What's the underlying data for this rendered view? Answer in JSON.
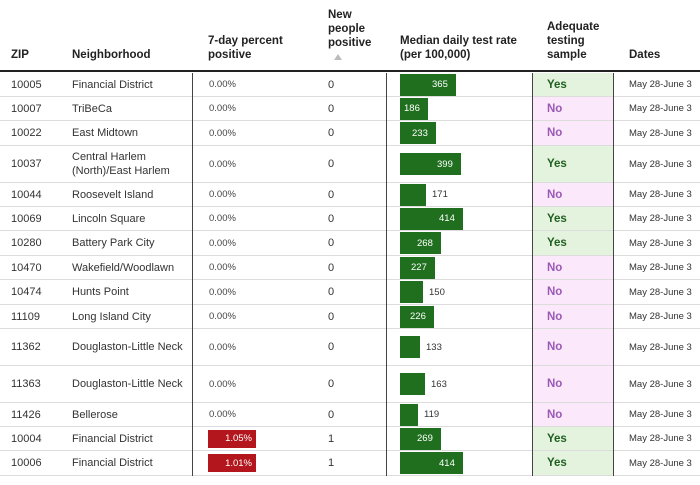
{
  "headers": {
    "zip": "ZIP",
    "neighborhood": "Neighborhood",
    "pct": [
      "7-day percent",
      "positive"
    ],
    "newpos": [
      "New",
      "people",
      "positive"
    ],
    "rate": [
      "Median daily test rate",
      "(per 100,000)"
    ],
    "adequate": [
      "Adequate",
      "testing",
      "sample"
    ],
    "dates": "Dates"
  },
  "rows": [
    {
      "zip": "10005",
      "neighborhood": "Financial District",
      "pct": "0.00%",
      "pct_value": 0,
      "new_positive": "0",
      "rate": 365,
      "adequate": "Yes",
      "dates": "May 28-June 3"
    },
    {
      "zip": "10007",
      "neighborhood": "TriBeCa",
      "pct": "0.00%",
      "pct_value": 0,
      "new_positive": "0",
      "rate": 186,
      "adequate": "No",
      "dates": "May 28-June 3"
    },
    {
      "zip": "10022",
      "neighborhood": "East Midtown",
      "pct": "0.00%",
      "pct_value": 0,
      "new_positive": "0",
      "rate": 233,
      "adequate": "No",
      "dates": "May 28-June 3"
    },
    {
      "zip": "10037",
      "neighborhood": "Central Harlem (North)/East Harlem",
      "pct": "0.00%",
      "pct_value": 0,
      "new_positive": "0",
      "rate": 399,
      "adequate": "Yes",
      "dates": "May 28-June 3"
    },
    {
      "zip": "10044",
      "neighborhood": "Roosevelt Island",
      "pct": "0.00%",
      "pct_value": 0,
      "new_positive": "0",
      "rate": 171,
      "adequate": "No",
      "dates": "May 28-June 3"
    },
    {
      "zip": "10069",
      "neighborhood": "Lincoln Square",
      "pct": "0.00%",
      "pct_value": 0,
      "new_positive": "0",
      "rate": 414,
      "adequate": "Yes",
      "dates": "May 28-June 3"
    },
    {
      "zip": "10280",
      "neighborhood": "Battery Park City",
      "pct": "0.00%",
      "pct_value": 0,
      "new_positive": "0",
      "rate": 268,
      "adequate": "Yes",
      "dates": "May 28-June 3"
    },
    {
      "zip": "10470",
      "neighborhood": "Wakefield/Woodlawn",
      "pct": "0.00%",
      "pct_value": 0,
      "new_positive": "0",
      "rate": 227,
      "adequate": "No",
      "dates": "May 28-June 3"
    },
    {
      "zip": "10474",
      "neighborhood": "Hunts Point",
      "pct": "0.00%",
      "pct_value": 0,
      "new_positive": "0",
      "rate": 150,
      "adequate": "No",
      "dates": "May 28-June 3"
    },
    {
      "zip": "11109",
      "neighborhood": "Long Island City",
      "pct": "0.00%",
      "pct_value": 0,
      "new_positive": "0",
      "rate": 226,
      "adequate": "No",
      "dates": "May 28-June 3"
    },
    {
      "zip": "11362",
      "neighborhood": "Douglaston-Little Neck",
      "pct": "0.00%",
      "pct_value": 0,
      "new_positive": "0",
      "rate": 133,
      "adequate": "No",
      "dates": "May 28-June 3"
    },
    {
      "zip": "11363",
      "neighborhood": "Douglaston-Little Neck",
      "pct": "0.00%",
      "pct_value": 0,
      "new_positive": "0",
      "rate": 163,
      "adequate": "No",
      "dates": "May 28-June 3"
    },
    {
      "zip": "11426",
      "neighborhood": "Bellerose",
      "pct": "0.00%",
      "pct_value": 0,
      "new_positive": "0",
      "rate": 119,
      "adequate": "No",
      "dates": "May 28-June 3"
    },
    {
      "zip": "10004",
      "neighborhood": "Financial District",
      "pct": "1.05%",
      "pct_value": 1.05,
      "new_positive": "1",
      "rate": 269,
      "adequate": "Yes",
      "dates": "May 28-June 3"
    },
    {
      "zip": "10006",
      "neighborhood": "Financial District",
      "pct": "1.01%",
      "pct_value": 1.01,
      "new_positive": "1",
      "rate": 414,
      "adequate": "Yes",
      "dates": "May 28-June 3"
    }
  ],
  "colors": {
    "bar": "#1f6f1f",
    "positive_pct": "#b3171d",
    "yes_bg": "#e4f3de",
    "yes_text": "#1f5f1f",
    "no_bg": "#fbe9fb",
    "no_text": "#9b59b6"
  }
}
